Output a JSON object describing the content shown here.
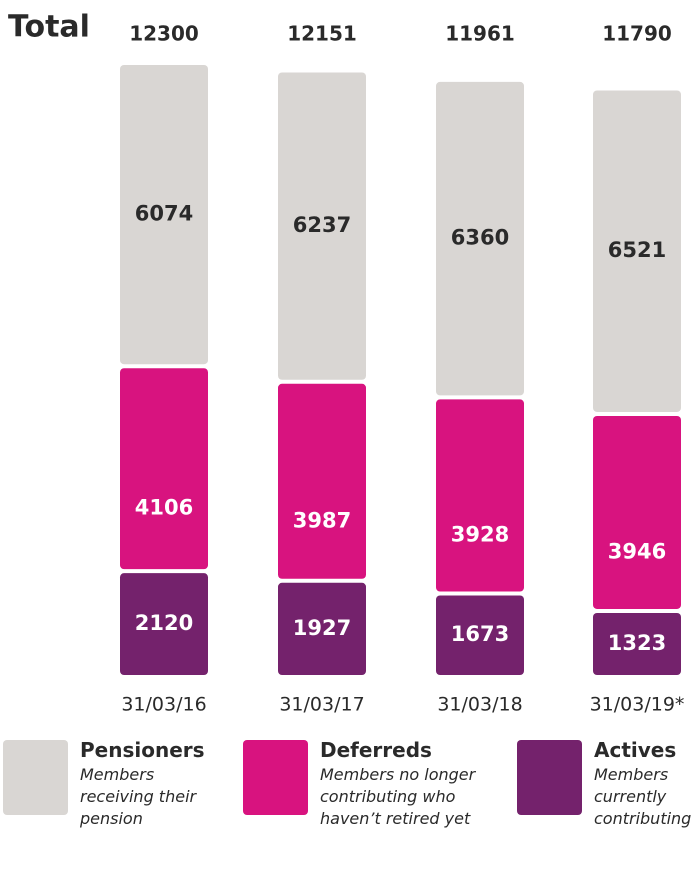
{
  "chart_data": {
    "type": "stacked-bar",
    "title": "Total",
    "categories": [
      "31/03/16",
      "31/03/17",
      "31/03/18",
      "31/03/19*"
    ],
    "totals": [
      12300,
      12151,
      11961,
      11790
    ],
    "series": [
      {
        "name": "Pensioners",
        "description": "Members receiving their pension",
        "color": "#d9d6d3",
        "label_color": "#2a2a2a",
        "values": [
          6074,
          6237,
          6360,
          6521
        ]
      },
      {
        "name": "Deferreds",
        "description": "Members no longer contributing who haven’t retired yet",
        "color": "#d8137f",
        "label_color": "#ffffff",
        "values": [
          4106,
          3987,
          3928,
          3946
        ]
      },
      {
        "name": "Actives",
        "description": "Members currently contributing",
        "color": "#74226c",
        "label_color": "#ffffff",
        "values": [
          2120,
          1927,
          1673,
          1323
        ]
      }
    ],
    "ylim": [
      0,
      12300
    ]
  }
}
